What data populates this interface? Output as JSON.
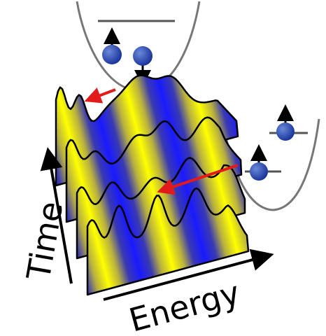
{
  "axes": {
    "y_label": "Time",
    "x_label": "Energy"
  }
}
